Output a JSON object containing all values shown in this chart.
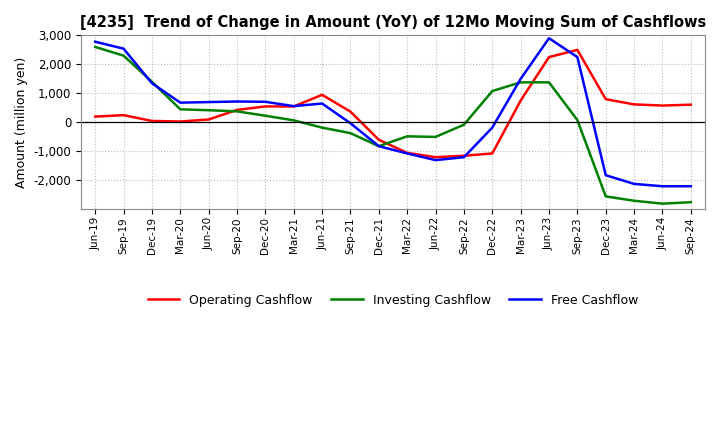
{
  "title": "[4235]  Trend of Change in Amount (YoY) of 12Mo Moving Sum of Cashflows",
  "ylabel": "Amount (million yen)",
  "x_labels": [
    "Jun-19",
    "Sep-19",
    "Dec-19",
    "Mar-20",
    "Jun-20",
    "Sep-20",
    "Dec-20",
    "Mar-21",
    "Jun-21",
    "Sep-21",
    "Dec-21",
    "Mar-22",
    "Jun-22",
    "Sep-22",
    "Dec-22",
    "Mar-23",
    "Jun-23",
    "Sep-23",
    "Dec-23",
    "Mar-24",
    "Jun-24",
    "Sep-24"
  ],
  "operating": [
    200,
    250,
    50,
    30,
    100,
    430,
    550,
    550,
    950,
    370,
    -600,
    -1050,
    -1200,
    -1150,
    -1070,
    750,
    2250,
    2500,
    800,
    620,
    580,
    610
  ],
  "investing": [
    2600,
    2300,
    1400,
    450,
    420,
    380,
    230,
    70,
    -180,
    -370,
    -820,
    -480,
    -500,
    -80,
    1080,
    1380,
    1380,
    80,
    -2550,
    -2700,
    -2800,
    -2750
  ],
  "free": [
    2780,
    2540,
    1350,
    680,
    700,
    720,
    710,
    560,
    650,
    -30,
    -820,
    -1070,
    -1300,
    -1200,
    -180,
    1500,
    2900,
    2250,
    -1820,
    -2120,
    -2200,
    -2200
  ],
  "operating_color": "#ff0000",
  "investing_color": "#008000",
  "free_color": "#0000ff",
  "bg_color": "#ffffff",
  "plot_bg_color": "#ffffff",
  "ylim": [
    -3000,
    3000
  ],
  "yticks": [
    -2000,
    -1000,
    0,
    1000,
    2000,
    3000
  ],
  "grid_color": "#bbbbbb",
  "line_width": 1.8
}
